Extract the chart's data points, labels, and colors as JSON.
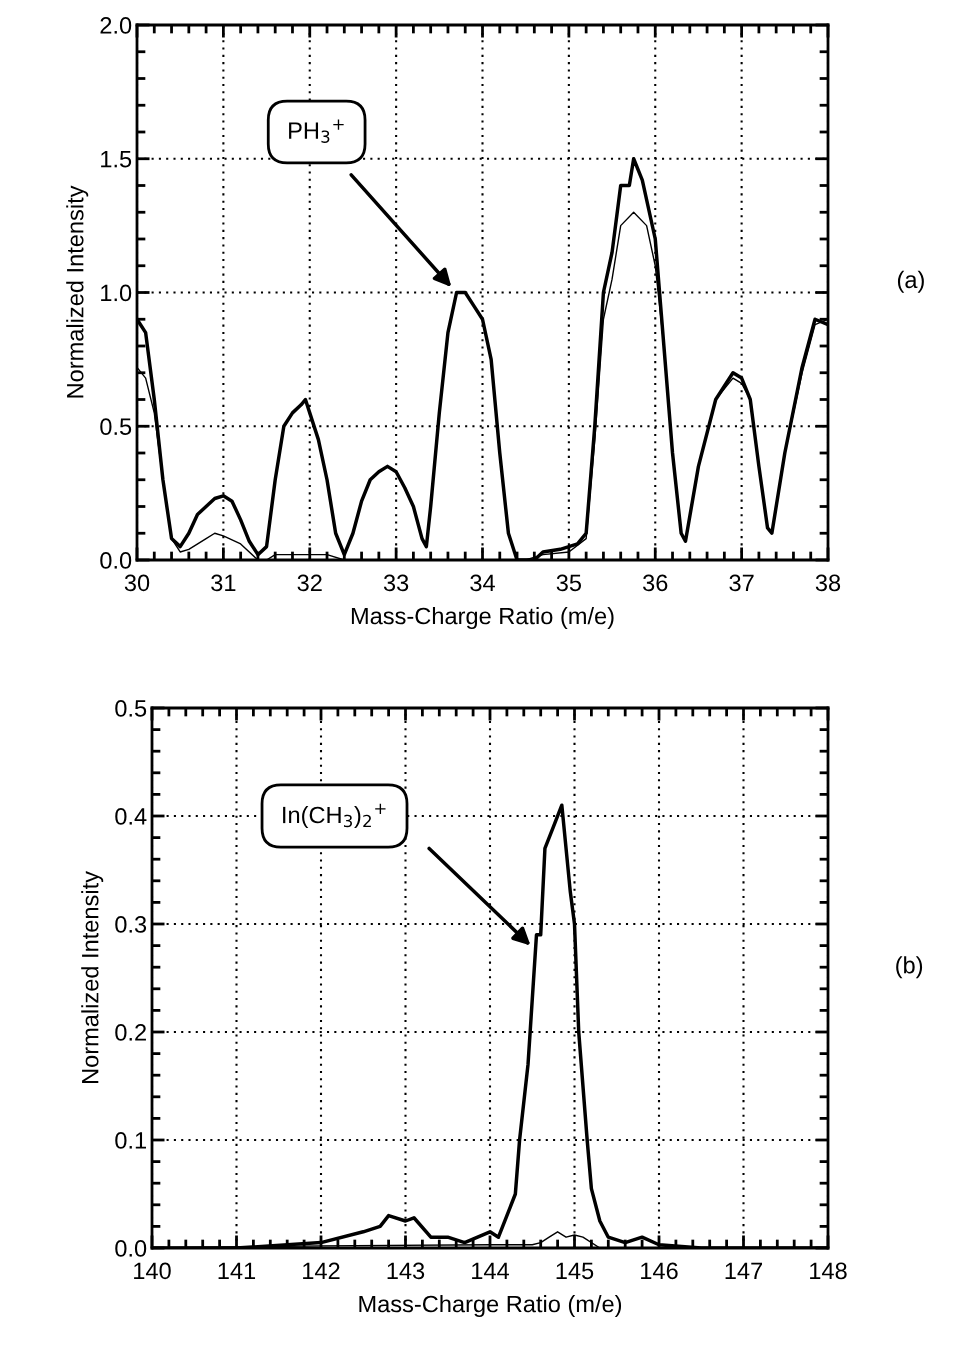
{
  "chart_data": [
    {
      "type": "line",
      "xlabel": "Mass-Charge Ratio (m/e)",
      "ylabel": "Normalized Intensity",
      "xlim": [
        30,
        38
      ],
      "xticks": [
        30,
        31,
        32,
        33,
        34,
        35,
        36,
        37,
        38
      ],
      "ylim": [
        0,
        2.0
      ],
      "yticks": [
        {
          "value": 0,
          "label": "0.0"
        },
        0.5,
        {
          "value": 1,
          "label": "1.0"
        },
        1.5,
        {
          "value": 2,
          "label": "2.0"
        }
      ],
      "grid": true,
      "legend": false,
      "marker": "none",
      "line_style": "solid",
      "annotations": [
        "PH$_{3}$$^{+}$",
        "(a)"
      ],
      "series": [
        {
          "color": "#000000",
          "x": [
            30.0,
            30.1,
            30.2,
            30.3,
            30.4,
            30.5,
            30.6,
            30.7,
            30.8,
            30.9,
            31.0,
            31.1,
            31.2,
            31.3,
            31.4,
            31.5,
            31.6,
            31.7,
            31.8,
            31.9,
            31.95,
            32.0,
            32.1,
            32.2,
            32.3,
            32.4,
            32.5,
            32.6,
            32.7,
            32.8,
            32.9,
            33.0,
            33.1,
            33.2,
            33.3,
            33.35,
            33.4,
            33.5,
            33.6,
            33.7,
            33.8,
            33.9,
            34.0,
            34.1,
            34.2,
            34.3,
            34.4,
            34.6,
            34.7,
            34.9,
            35.0,
            35.1,
            35.2,
            35.3,
            35.4,
            35.5,
            35.6,
            35.7,
            35.75,
            35.85,
            36.0,
            36.1,
            36.2,
            36.3,
            36.35,
            36.5,
            36.7,
            36.9,
            37.0,
            37.1,
            37.2,
            37.3,
            37.35,
            37.5,
            37.7,
            37.85,
            38.0
          ],
          "values": [
            0.9,
            0.85,
            0.6,
            0.3,
            0.08,
            0.05,
            0.1,
            0.17,
            0.2,
            0.23,
            0.24,
            0.22,
            0.15,
            0.07,
            0.02,
            0.05,
            0.3,
            0.5,
            0.55,
            0.58,
            0.6,
            0.55,
            0.45,
            0.3,
            0.1,
            0.02,
            0.1,
            0.22,
            0.3,
            0.33,
            0.35,
            0.33,
            0.27,
            0.2,
            0.08,
            0.05,
            0.2,
            0.55,
            0.85,
            1.0,
            1.0,
            0.95,
            0.9,
            0.75,
            0.4,
            0.1,
            0.0,
            0.0,
            0.03,
            0.04,
            0.05,
            0.06,
            0.1,
            0.5,
            1.0,
            1.15,
            1.4,
            1.4,
            1.5,
            1.42,
            1.2,
            0.8,
            0.4,
            0.1,
            0.07,
            0.35,
            0.6,
            0.7,
            0.68,
            0.6,
            0.35,
            0.12,
            0.1,
            0.4,
            0.72,
            0.9,
            0.88
          ]
        },
        {
          "color": "#000000",
          "x": [
            30.0,
            30.1,
            30.2,
            30.3,
            30.4,
            30.5,
            30.6,
            30.8,
            30.9,
            31.0,
            31.2,
            31.4,
            31.5,
            31.6,
            32.2,
            32.4,
            34.5,
            34.7,
            35.0,
            35.2,
            35.3,
            35.4,
            35.5,
            35.6,
            35.75,
            35.9,
            36.0,
            36.1,
            36.2,
            36.3,
            36.35,
            36.5,
            36.7,
            36.9,
            37.0,
            37.1,
            37.2,
            37.3,
            37.35,
            37.5,
            37.7,
            37.85,
            38.0
          ],
          "values": [
            0.72,
            0.68,
            0.55,
            0.3,
            0.08,
            0.03,
            0.04,
            0.08,
            0.1,
            0.09,
            0.06,
            0.0,
            0.0,
            0.02,
            0.02,
            0.0,
            0.0,
            0.02,
            0.03,
            0.08,
            0.45,
            0.9,
            1.05,
            1.25,
            1.3,
            1.25,
            1.1,
            0.8,
            0.4,
            0.1,
            0.07,
            0.35,
            0.6,
            0.68,
            0.66,
            0.6,
            0.35,
            0.12,
            0.1,
            0.4,
            0.7,
            0.88,
            0.9
          ]
        }
      ]
    },
    {
      "type": "line",
      "xlabel": "Mass-Charge Ratio (m/e)",
      "ylabel": "Normalized Intensity",
      "xlim": [
        140,
        148
      ],
      "xticks": [
        140,
        141,
        142,
        143,
        144,
        145,
        146,
        147,
        148
      ],
      "ylim": [
        0,
        0.5
      ],
      "yticks": [
        {
          "value": 0,
          "label": "0.0"
        },
        0.1,
        0.2,
        0.3,
        0.4,
        0.5
      ],
      "grid": true,
      "legend": false,
      "marker": "none",
      "line_style": "solid",
      "annotations": [
        "In(CH$_{3}$)$_{2}$$^{+}$",
        "(b)"
      ],
      "series": [
        {
          "color": "#000000",
          "x": [
            140.0,
            141.0,
            142.0,
            142.5,
            142.7,
            142.8,
            143.0,
            143.1,
            143.3,
            143.5,
            143.7,
            144.0,
            144.1,
            144.2,
            144.3,
            144.35,
            144.45,
            144.5,
            144.55,
            144.6,
            144.65,
            144.75,
            144.85,
            144.95,
            145.0,
            145.05,
            145.15,
            145.2,
            145.3,
            145.4,
            145.6,
            145.8,
            146.0,
            146.5,
            147.0,
            148.0
          ],
          "values": [
            0.0,
            0.0,
            0.005,
            0.015,
            0.02,
            0.03,
            0.025,
            0.028,
            0.01,
            0.01,
            0.005,
            0.015,
            0.01,
            0.03,
            0.05,
            0.1,
            0.17,
            0.23,
            0.29,
            0.29,
            0.37,
            0.39,
            0.41,
            0.33,
            0.3,
            0.2,
            0.1,
            0.055,
            0.025,
            0.01,
            0.005,
            0.01,
            0.003,
            0.0,
            0.0,
            0.0
          ]
        },
        {
          "color": "#000000",
          "x": [
            140.0,
            142.0,
            144.0,
            144.5,
            144.6,
            144.7,
            144.8,
            144.9,
            145.0,
            145.1,
            145.3,
            146.0,
            148.0
          ],
          "values": [
            0.0,
            0.002,
            0.003,
            0.003,
            0.005,
            0.01,
            0.015,
            0.01,
            0.012,
            0.01,
            0.0,
            0.0,
            0.0
          ]
        }
      ]
    }
  ]
}
